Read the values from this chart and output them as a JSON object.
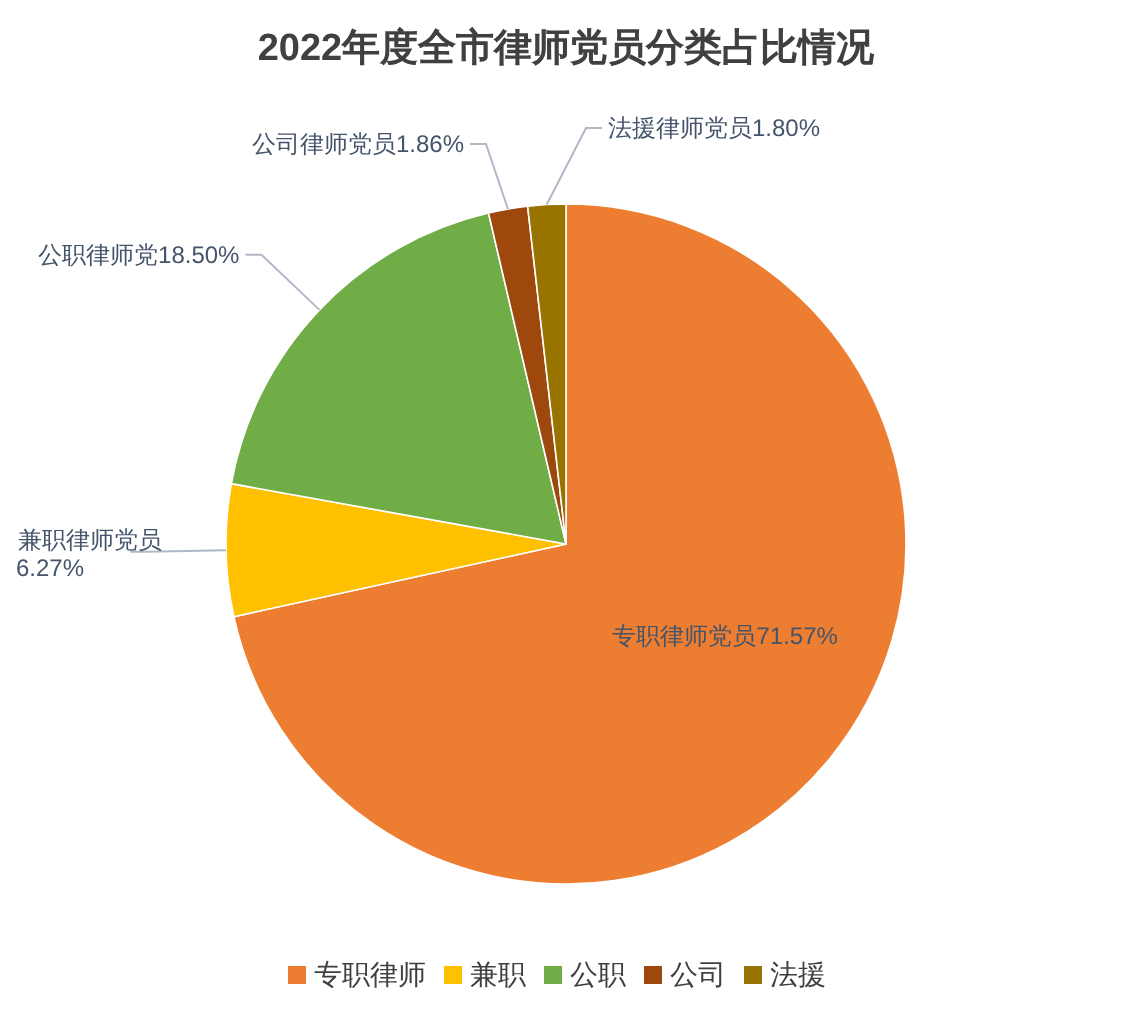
{
  "chart_data": {
    "type": "pie",
    "title": "2022年度全市律师党员分类占比情况",
    "categories": [
      "专职律师",
      "兼职",
      "公职",
      "公司",
      "法援"
    ],
    "values": [
      71.57,
      6.27,
      18.5,
      1.86,
      1.8
    ],
    "colors": [
      "#ed7d31",
      "#ffc000",
      "#70ad47",
      "#9e480e",
      "#997300"
    ],
    "value_labels": [
      "专职律师党员71.57%",
      "兼职律师党员6.27%",
      "公职律师党18.50%",
      "公司律师党员1.86%",
      "法援律师党员1.80%"
    ],
    "legend": "bottom"
  }
}
